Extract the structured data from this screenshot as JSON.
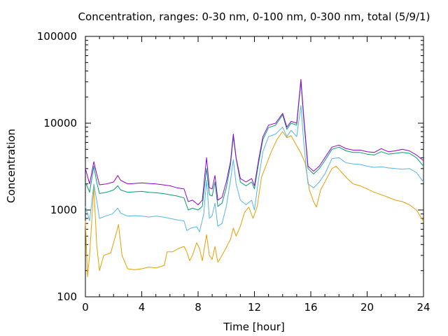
{
  "chart_data": {
    "type": "line",
    "title": "Concentration, ranges: 0-30 nm, 0-100 nm, 0-300 nm, total (5/9/1)",
    "xlabel": "Time [hour]",
    "ylabel": "Concentration",
    "xlim": [
      0,
      24
    ],
    "ylim": [
      100,
      100000
    ],
    "yscale": "log",
    "grid": false,
    "legend": "none",
    "xticks": [
      0,
      4,
      8,
      12,
      16,
      20,
      24
    ],
    "xtick_labels": [
      "0",
      "4",
      "8",
      "12",
      "16",
      "20",
      "24"
    ],
    "yticks": [
      100,
      1000,
      10000,
      100000
    ],
    "ytick_labels": [
      "100",
      "1000",
      "10000",
      "100000"
    ],
    "series": [
      {
        "color": "#e69f00",
        "values": [
          [
            0,
            750
          ],
          [
            0.15,
            170
          ],
          [
            0.3,
            300
          ],
          [
            0.6,
            1850
          ],
          [
            0.8,
            400
          ],
          [
            1.0,
            200
          ],
          [
            1.3,
            300
          ],
          [
            1.8,
            320
          ],
          [
            2.2,
            550
          ],
          [
            2.35,
            680
          ],
          [
            2.6,
            300
          ],
          [
            3.0,
            210
          ],
          [
            3.5,
            205
          ],
          [
            4.0,
            210
          ],
          [
            4.5,
            220
          ],
          [
            5.0,
            215
          ],
          [
            5.6,
            230
          ],
          [
            5.8,
            330
          ],
          [
            6.2,
            330
          ],
          [
            6.6,
            360
          ],
          [
            7.0,
            380
          ],
          [
            7.2,
            330
          ],
          [
            7.4,
            260
          ],
          [
            7.6,
            300
          ],
          [
            7.9,
            420
          ],
          [
            8.1,
            360
          ],
          [
            8.3,
            260
          ],
          [
            8.6,
            520
          ],
          [
            8.8,
            300
          ],
          [
            9.0,
            270
          ],
          [
            9.2,
            380
          ],
          [
            9.4,
            250
          ],
          [
            9.7,
            300
          ],
          [
            10.0,
            370
          ],
          [
            10.3,
            460
          ],
          [
            10.5,
            620
          ],
          [
            10.7,
            500
          ],
          [
            11.0,
            650
          ],
          [
            11.3,
            940
          ],
          [
            11.6,
            1080
          ],
          [
            11.9,
            800
          ],
          [
            12.2,
            1100
          ],
          [
            12.5,
            2400
          ],
          [
            12.8,
            3200
          ],
          [
            13.2,
            4700
          ],
          [
            13.6,
            6500
          ],
          [
            14.0,
            8000
          ],
          [
            14.3,
            6800
          ],
          [
            14.6,
            7200
          ],
          [
            15.0,
            5500
          ],
          [
            15.3,
            4500
          ],
          [
            15.6,
            3500
          ],
          [
            15.9,
            1700
          ],
          [
            16.2,
            1250
          ],
          [
            16.4,
            1080
          ],
          [
            16.7,
            1700
          ],
          [
            17.0,
            2100
          ],
          [
            17.5,
            3000
          ],
          [
            17.8,
            3200
          ],
          [
            18.2,
            2700
          ],
          [
            18.6,
            2300
          ],
          [
            19.0,
            2000
          ],
          [
            19.5,
            1900
          ],
          [
            20.0,
            1750
          ],
          [
            20.5,
            1600
          ],
          [
            21.0,
            1500
          ],
          [
            21.5,
            1400
          ],
          [
            22.0,
            1300
          ],
          [
            22.5,
            1250
          ],
          [
            23.0,
            1150
          ],
          [
            23.5,
            1000
          ],
          [
            24,
            740
          ]
        ]
      },
      {
        "color": "#56b4e9",
        "values": [
          [
            0,
            1100
          ],
          [
            0.3,
            750
          ],
          [
            0.6,
            2000
          ],
          [
            0.8,
            1300
          ],
          [
            1.0,
            800
          ],
          [
            1.4,
            850
          ],
          [
            1.9,
            900
          ],
          [
            2.3,
            1050
          ],
          [
            2.5,
            920
          ],
          [
            3.0,
            850
          ],
          [
            3.5,
            860
          ],
          [
            4.0,
            850
          ],
          [
            4.5,
            830
          ],
          [
            5.0,
            850
          ],
          [
            5.5,
            830
          ],
          [
            6.0,
            800
          ],
          [
            6.5,
            770
          ],
          [
            7.0,
            750
          ],
          [
            7.2,
            580
          ],
          [
            7.5,
            620
          ],
          [
            7.9,
            640
          ],
          [
            8.1,
            560
          ],
          [
            8.4,
            900
          ],
          [
            8.6,
            2200
          ],
          [
            8.8,
            800
          ],
          [
            9.0,
            860
          ],
          [
            9.2,
            1200
          ],
          [
            9.4,
            650
          ],
          [
            9.7,
            700
          ],
          [
            10.0,
            1100
          ],
          [
            10.3,
            2200
          ],
          [
            10.5,
            3800
          ],
          [
            10.7,
            2000
          ],
          [
            11.0,
            1300
          ],
          [
            11.4,
            1150
          ],
          [
            11.8,
            1300
          ],
          [
            12.0,
            1000
          ],
          [
            12.3,
            2300
          ],
          [
            12.6,
            4700
          ],
          [
            13.0,
            7000
          ],
          [
            13.5,
            7500
          ],
          [
            14.0,
            9000
          ],
          [
            14.3,
            7000
          ],
          [
            14.6,
            8300
          ],
          [
            15.0,
            7000
          ],
          [
            15.3,
            16000
          ],
          [
            15.5,
            6000
          ],
          [
            15.8,
            2000
          ],
          [
            16.2,
            1800
          ],
          [
            16.6,
            2100
          ],
          [
            17.0,
            2600
          ],
          [
            17.5,
            3900
          ],
          [
            18.0,
            4000
          ],
          [
            18.5,
            3500
          ],
          [
            19.0,
            3400
          ],
          [
            19.5,
            3350
          ],
          [
            20.0,
            3200
          ],
          [
            20.5,
            3100
          ],
          [
            21.0,
            3150
          ],
          [
            21.5,
            3050
          ],
          [
            22.0,
            3000
          ],
          [
            22.5,
            2950
          ],
          [
            23.0,
            3000
          ],
          [
            23.5,
            2700
          ],
          [
            24,
            2100
          ]
        ]
      },
      {
        "color": "#009e73",
        "values": [
          [
            0,
            2100
          ],
          [
            0.3,
            1600
          ],
          [
            0.6,
            3200
          ],
          [
            0.8,
            2100
          ],
          [
            1.0,
            1550
          ],
          [
            1.5,
            1600
          ],
          [
            2.0,
            1700
          ],
          [
            2.3,
            1900
          ],
          [
            2.5,
            1700
          ],
          [
            3.0,
            1600
          ],
          [
            3.5,
            1620
          ],
          [
            4.0,
            1640
          ],
          [
            4.5,
            1600
          ],
          [
            5.0,
            1580
          ],
          [
            5.5,
            1550
          ],
          [
            6.0,
            1500
          ],
          [
            6.5,
            1450
          ],
          [
            7.0,
            1380
          ],
          [
            7.3,
            1000
          ],
          [
            7.6,
            1050
          ],
          [
            8.0,
            1000
          ],
          [
            8.3,
            1100
          ],
          [
            8.6,
            3000
          ],
          [
            8.8,
            1500
          ],
          [
            9.0,
            1450
          ],
          [
            9.2,
            2100
          ],
          [
            9.4,
            1100
          ],
          [
            9.7,
            1200
          ],
          [
            10.0,
            1800
          ],
          [
            10.3,
            3300
          ],
          [
            10.5,
            7000
          ],
          [
            10.7,
            3900
          ],
          [
            11.0,
            2100
          ],
          [
            11.4,
            1900
          ],
          [
            11.8,
            2100
          ],
          [
            12.0,
            1750
          ],
          [
            12.3,
            3500
          ],
          [
            12.6,
            6500
          ],
          [
            13.0,
            8900
          ],
          [
            13.5,
            9500
          ],
          [
            14.0,
            12500
          ],
          [
            14.3,
            8500
          ],
          [
            14.6,
            10000
          ],
          [
            15.0,
            9500
          ],
          [
            15.3,
            30000
          ],
          [
            15.5,
            11000
          ],
          [
            15.8,
            3000
          ],
          [
            16.2,
            2600
          ],
          [
            16.6,
            3000
          ],
          [
            17.0,
            3700
          ],
          [
            17.5,
            5000
          ],
          [
            18.0,
            5300
          ],
          [
            18.5,
            4800
          ],
          [
            19.0,
            4600
          ],
          [
            19.5,
            4600
          ],
          [
            20.0,
            4400
          ],
          [
            20.5,
            4300
          ],
          [
            21.0,
            4700
          ],
          [
            21.5,
            4400
          ],
          [
            22.0,
            4500
          ],
          [
            22.5,
            4600
          ],
          [
            23.0,
            4500
          ],
          [
            23.5,
            4000
          ],
          [
            24,
            3200
          ]
        ]
      },
      {
        "color": "#9400d3",
        "values": [
          [
            0,
            3000
          ],
          [
            0.3,
            2000
          ],
          [
            0.6,
            3600
          ],
          [
            0.8,
            2600
          ],
          [
            1.0,
            1950
          ],
          [
            1.5,
            2000
          ],
          [
            2.0,
            2100
          ],
          [
            2.3,
            2500
          ],
          [
            2.5,
            2200
          ],
          [
            3.0,
            2000
          ],
          [
            3.5,
            2020
          ],
          [
            4.0,
            2050
          ],
          [
            4.5,
            2020
          ],
          [
            5.0,
            2000
          ],
          [
            5.5,
            1950
          ],
          [
            6.0,
            1900
          ],
          [
            6.5,
            1800
          ],
          [
            7.0,
            1750
          ],
          [
            7.3,
            1250
          ],
          [
            7.6,
            1300
          ],
          [
            8.0,
            1150
          ],
          [
            8.3,
            1300
          ],
          [
            8.6,
            4000
          ],
          [
            8.8,
            1800
          ],
          [
            9.0,
            1750
          ],
          [
            9.2,
            2500
          ],
          [
            9.4,
            1300
          ],
          [
            9.7,
            1400
          ],
          [
            10.0,
            2100
          ],
          [
            10.3,
            3600
          ],
          [
            10.5,
            7500
          ],
          [
            10.7,
            4000
          ],
          [
            11.0,
            2300
          ],
          [
            11.4,
            2100
          ],
          [
            11.8,
            2300
          ],
          [
            12.0,
            1900
          ],
          [
            12.3,
            3800
          ],
          [
            12.6,
            7000
          ],
          [
            13.0,
            9500
          ],
          [
            13.5,
            10000
          ],
          [
            14.0,
            13000
          ],
          [
            14.3,
            9000
          ],
          [
            14.6,
            10500
          ],
          [
            15.0,
            10000
          ],
          [
            15.3,
            32000
          ],
          [
            15.5,
            12000
          ],
          [
            15.8,
            3200
          ],
          [
            16.2,
            2800
          ],
          [
            16.6,
            3200
          ],
          [
            17.0,
            4000
          ],
          [
            17.5,
            5300
          ],
          [
            18.0,
            5600
          ],
          [
            18.5,
            5100
          ],
          [
            19.0,
            4900
          ],
          [
            19.5,
            4900
          ],
          [
            20.0,
            4700
          ],
          [
            20.5,
            4600
          ],
          [
            21.0,
            5100
          ],
          [
            21.5,
            4700
          ],
          [
            22.0,
            4800
          ],
          [
            22.5,
            5000
          ],
          [
            23.0,
            4800
          ],
          [
            23.5,
            4300
          ],
          [
            24,
            3700
          ]
        ]
      }
    ]
  }
}
